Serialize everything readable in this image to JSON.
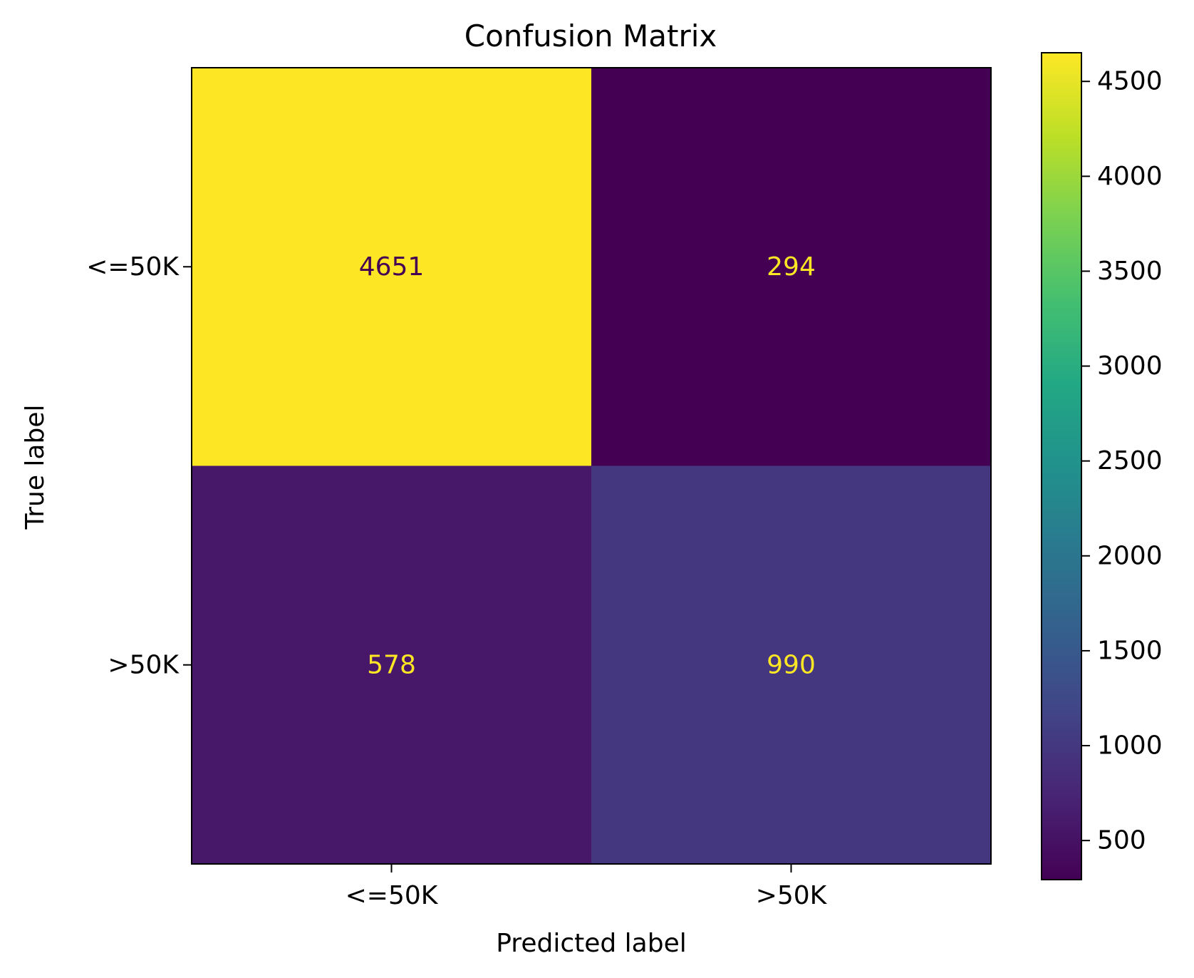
{
  "chart_data": {
    "type": "heatmap",
    "title": "Confusion Matrix",
    "xlabel": "Predicted label",
    "ylabel": "True label",
    "x_categories": [
      "<=50K",
      ">50K"
    ],
    "y_categories": [
      "<=50K",
      ">50K"
    ],
    "values": [
      [
        4651,
        294
      ],
      [
        578,
        990
      ]
    ],
    "colormap": "viridis",
    "colorbar": {
      "range": [
        294,
        4651
      ],
      "ticks": [
        500,
        1000,
        1500,
        2000,
        2500,
        3000,
        3500,
        4000,
        4500
      ],
      "tick_labels": [
        "500",
        "1000",
        "1500",
        "2000",
        "2500",
        "3000",
        "3500",
        "4000",
        "4500"
      ]
    },
    "cell_text_colors": {
      "on_bright": "#440154",
      "on_dark": "#fde725"
    },
    "grid": false
  }
}
